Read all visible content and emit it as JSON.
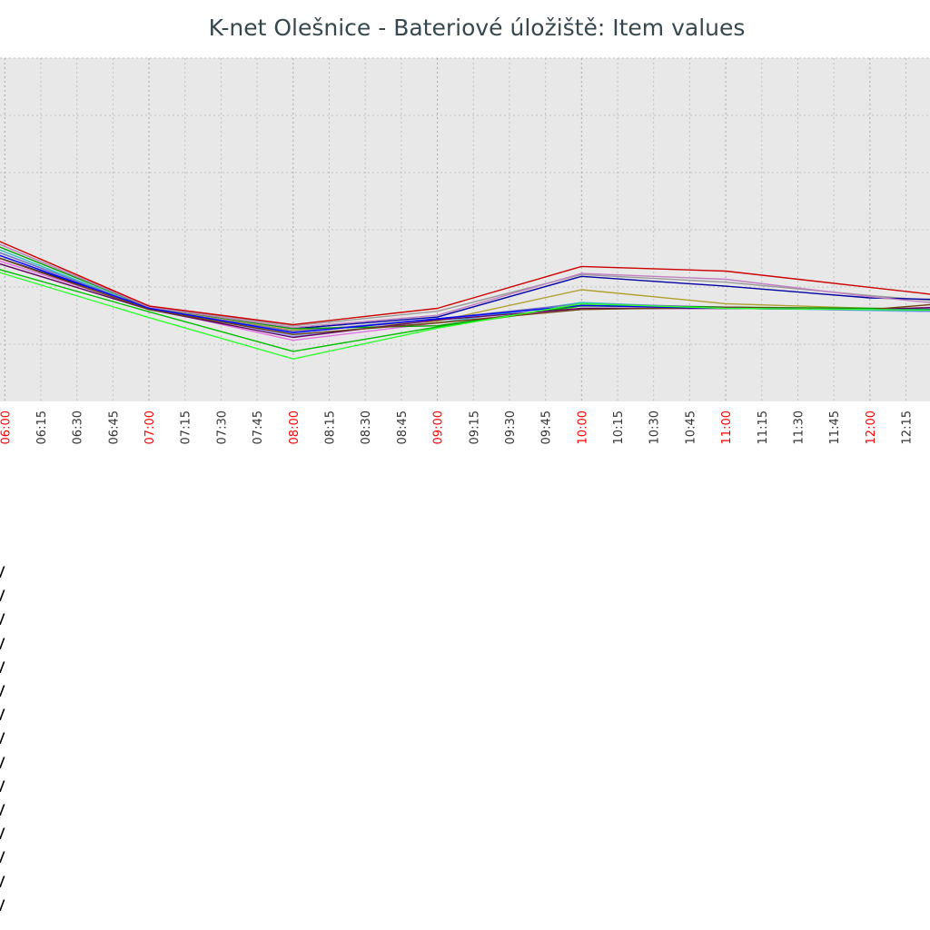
{
  "title": "K-net Olešnice - Bateriové úložiště: Item values",
  "colors": {
    "plot_bg": "#e8e8e8",
    "grid": "#bfbfbf",
    "tick_hour": "#ff0000",
    "tick_normal": "#333333"
  },
  "legend_entries": [
    "V",
    "V",
    "V",
    "V",
    "V",
    "V",
    "V",
    "V",
    "V",
    "V",
    "V",
    "V",
    "V",
    "V",
    "V"
  ],
  "chart_data": {
    "type": "line",
    "title": "K-net Olešnice - Bateriové úložiště: Item values",
    "x_ticks": [
      {
        "time": "06:00",
        "label": "06:00",
        "major": true
      },
      {
        "time": "06:15",
        "label": "06:15",
        "major": false
      },
      {
        "time": "06:30",
        "label": "06:30",
        "major": false
      },
      {
        "time": "06:45",
        "label": "06:45",
        "major": false
      },
      {
        "time": "07:00",
        "label": "07:00",
        "major": true
      },
      {
        "time": "07:15",
        "label": "07:15",
        "major": false
      },
      {
        "time": "07:30",
        "label": "07:30",
        "major": false
      },
      {
        "time": "07:45",
        "label": "07:45",
        "major": false
      },
      {
        "time": "08:00",
        "label": "08:00",
        "major": true
      },
      {
        "time": "08:15",
        "label": "08:15",
        "major": false
      },
      {
        "time": "08:30",
        "label": "08:30",
        "major": false
      },
      {
        "time": "08:45",
        "label": "08:45",
        "major": false
      },
      {
        "time": "09:00",
        "label": "09:00",
        "major": true
      },
      {
        "time": "09:15",
        "label": "09:15",
        "major": false
      },
      {
        "time": "09:30",
        "label": "09:30",
        "major": false
      },
      {
        "time": "09:45",
        "label": "09:45",
        "major": false
      },
      {
        "time": "10:00",
        "label": "10:00",
        "major": true
      },
      {
        "time": "10:15",
        "label": "10:15",
        "major": false
      },
      {
        "time": "10:30",
        "label": "10:30",
        "major": false
      },
      {
        "time": "10:45",
        "label": "10:45",
        "major": false
      },
      {
        "time": "11:00",
        "label": "11:00",
        "major": true
      },
      {
        "time": "11:15",
        "label": "11:15",
        "major": false
      },
      {
        "time": "11:30",
        "label": "11:30",
        "major": false
      },
      {
        "time": "11:45",
        "label": "11:45",
        "major": false
      },
      {
        "time": "12:00",
        "label": "12:00",
        "major": true
      },
      {
        "time": "12:15",
        "label": "12:15",
        "major": false
      }
    ],
    "y_gridlines": 6,
    "x_visible": [
      "05:58",
      "12:25"
    ],
    "x": [
      "05:55",
      "07:00",
      "08:00",
      "09:00",
      "10:00",
      "11:00",
      "12:00",
      "12:30"
    ],
    "ylim": [
      -0.3,
      5.6
    ],
    "grid": true,
    "series": [
      {
        "color": "#00c000",
        "values": [
          2.0,
          1.24,
          0.56,
          0.98,
          1.34,
          1.32,
          1.28,
          1.3
        ]
      },
      {
        "color": "#9aa8ff",
        "values": [
          2.3,
          1.32,
          0.82,
          1.1,
          1.35,
          1.32,
          1.26,
          1.24
        ]
      },
      {
        "color": "#30c0c0",
        "values": [
          2.35,
          1.3,
          0.85,
          1.05,
          1.4,
          1.3,
          1.27,
          1.25
        ]
      },
      {
        "color": "#9a9a9a",
        "values": [
          2.45,
          1.33,
          1.0,
          1.25,
          1.88,
          1.75,
          1.52,
          1.42
        ]
      },
      {
        "color": "#0000a0",
        "values": [
          2.2,
          1.32,
          0.95,
          1.15,
          1.85,
          1.68,
          1.48,
          1.45
        ]
      },
      {
        "color": "#b0a030",
        "values": [
          2.25,
          1.3,
          0.92,
          1.08,
          1.62,
          1.38,
          1.3,
          1.3
        ]
      },
      {
        "color": "#7070c0",
        "values": [
          2.3,
          1.3,
          0.9,
          1.12,
          1.38,
          1.32,
          1.28,
          1.26
        ]
      },
      {
        "color": "#e070e0",
        "values": [
          2.15,
          1.3,
          0.75,
          1.05,
          1.3,
          1.3,
          1.28,
          1.3
        ]
      },
      {
        "color": "#00a000",
        "values": [
          2.4,
          1.32,
          0.95,
          1.0,
          1.35,
          1.32,
          1.3,
          1.28
        ]
      },
      {
        "color": "#c080c0",
        "values": [
          2.45,
          1.32,
          0.97,
          1.18,
          1.9,
          1.8,
          1.5,
          1.38
        ]
      },
      {
        "color": "#600060",
        "values": [
          2.1,
          1.28,
          0.8,
          1.1,
          1.3,
          1.3,
          1.28,
          1.32
        ]
      },
      {
        "color": "#704010",
        "values": [
          2.2,
          1.28,
          0.85,
          1.05,
          1.28,
          1.32,
          1.28,
          1.38
        ]
      },
      {
        "color": "#0000ff",
        "values": [
          2.25,
          1.3,
          0.88,
          1.12,
          1.35,
          1.3,
          1.28,
          1.28
        ]
      },
      {
        "color": "#30ff30",
        "values": [
          1.95,
          1.14,
          0.43,
          0.96,
          1.38,
          1.3,
          1.28,
          1.27
        ]
      },
      {
        "color": "#cc0000",
        "values": [
          2.5,
          1.34,
          1.02,
          1.3,
          2.02,
          1.94,
          1.66,
          1.52
        ]
      }
    ]
  }
}
